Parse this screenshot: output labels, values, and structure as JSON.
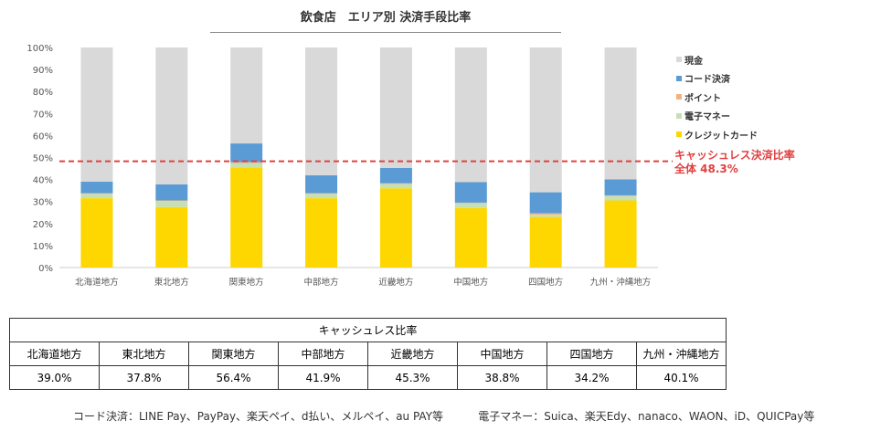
{
  "chart_data": {
    "type": "bar",
    "stacked": true,
    "title": "飲食店　エリア別 決済手段比率",
    "categories": [
      "北海道地方",
      "東北地方",
      "関東地方",
      "中部地方",
      "近畿地方",
      "中国地方",
      "四国地方",
      "九州・沖縄地方"
    ],
    "yticks": [
      "0%",
      "10%",
      "20%",
      "30%",
      "40%",
      "50%",
      "60%",
      "70%",
      "80%",
      "90%",
      "100%"
    ],
    "ylim": [
      0,
      100
    ],
    "series": [
      {
        "name": "クレジットカード",
        "color": "#FFD700",
        "values": [
          31.5,
          27.5,
          45.5,
          31.5,
          36,
          27,
          23,
          30.5
        ]
      },
      {
        "name": "電子マネー",
        "color": "#C5E0B4",
        "values": [
          2,
          2.8,
          2,
          2,
          2,
          2.2,
          1,
          2
        ]
      },
      {
        "name": "ポイント",
        "color": "#F4B183",
        "values": [
          0.3,
          0.2,
          0.4,
          0.3,
          0.3,
          0.3,
          0.7,
          0.3
        ]
      },
      {
        "name": "コード決済",
        "color": "#5B9BD5",
        "values": [
          5.2,
          7.3,
          8.5,
          8.1,
          7,
          9.3,
          9.5,
          7.3
        ]
      },
      {
        "name": "現金",
        "color": "#D9D9D9",
        "values": [
          61,
          62.2,
          43.6,
          58.1,
          54.7,
          61.2,
          65.8,
          59.9
        ]
      }
    ],
    "legend_order": [
      "現金",
      "コード決済",
      "ポイント",
      "電子マネー",
      "クレジットカード"
    ],
    "reference_line": {
      "value": 48.3,
      "color": "#E04040",
      "label1": "キャッシュレス決済比率",
      "label2": "全体 48.3%"
    }
  },
  "table": {
    "header": "キャッシュレス比率",
    "regions": [
      "北海道地方",
      "東北地方",
      "関東地方",
      "中部地方",
      "近畿地方",
      "中国地方",
      "四国地方",
      "九州・沖縄地方"
    ],
    "values": [
      "39.0%",
      "37.8%",
      "56.4%",
      "41.9%",
      "45.3%",
      "38.8%",
      "34.2%",
      "40.1%"
    ]
  },
  "footer": {
    "code": "コード決済：LINE Pay、PayPay、楽天ペイ、d払い、メルペイ、au PAY等",
    "emoney": "電子マネー：Suica、楽天Edy、nanaco、WAON、iD、QUICPay等"
  }
}
